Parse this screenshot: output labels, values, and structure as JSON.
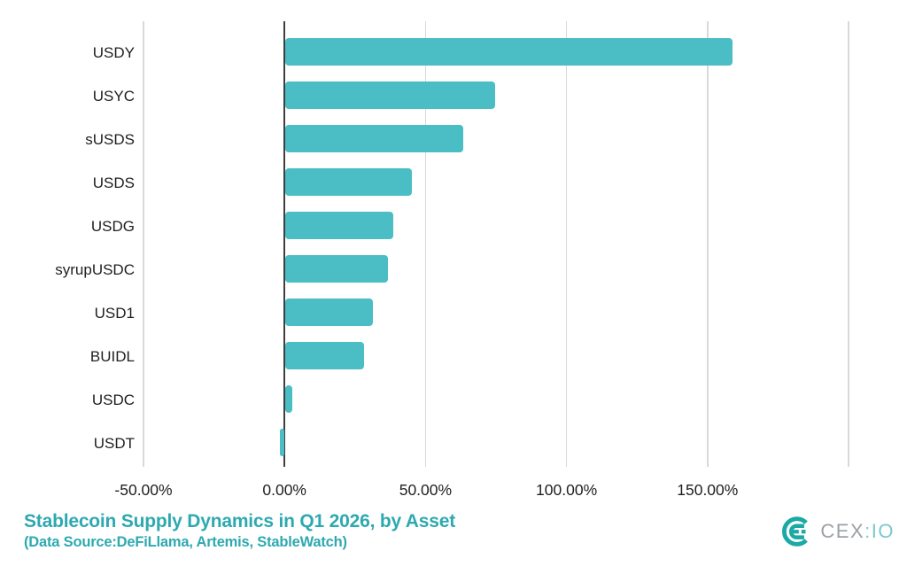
{
  "chart_data": {
    "type": "bar",
    "orientation": "horizontal",
    "title": "Stablecoin Supply Dynamics in Q1 2026, by Asset",
    "subtitle": "(Data Source:DeFiLlama, Artemis, StableWatch)",
    "categories": [
      "USDY",
      "USYC",
      "sUSDS",
      "USDS",
      "USDG",
      "syrupUSDC",
      "USD1",
      "BUIDL",
      "USDC",
      "USDT"
    ],
    "values": [
      158.6,
      74.3,
      63.0,
      44.8,
      38.4,
      36.5,
      31.0,
      28.0,
      2.5,
      -1.7
    ],
    "value_unit": "%",
    "xlabel": "",
    "ylabel": "",
    "xlim": [
      -50,
      200
    ],
    "x_ticks": [
      -50,
      0,
      50,
      100,
      150,
      200
    ],
    "x_tick_labels": [
      "-50.00%",
      "0.00%",
      "50.00%",
      "100.00%",
      "150.00%",
      ""
    ],
    "grid": "vertical-gridlines-on",
    "legend": "none",
    "bar_color": "#4abdc5"
  },
  "colors": {
    "bar": "#4abdc5",
    "title_teal": "#2ea9b0",
    "zero_axis": "#3f3f3f",
    "gridline": "#d9d9d9",
    "tick_text": "#1f1f1f",
    "logo_icon_teal": "#1ca9a5",
    "logo_text_gray": "#9ba1a6",
    "logo_text_teal": "#7cc8cb"
  },
  "logo": {
    "brand_part_gray": "CEX",
    "brand_part_teal": ":IO",
    "icon": "cexio-mark-icon"
  }
}
